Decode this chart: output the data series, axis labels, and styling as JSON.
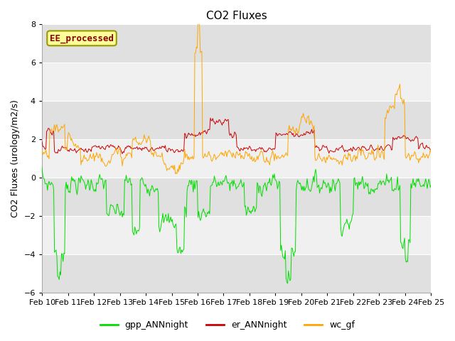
{
  "title": "CO2 Fluxes",
  "ylabel": "CO2 Fluxes (urology/m2/s)",
  "ylim": [
    -6,
    8
  ],
  "yticks": [
    -6,
    -4,
    -2,
    0,
    2,
    4,
    6,
    8
  ],
  "date_labels": [
    "Feb 10",
    "Feb 11",
    "Feb 12",
    "Feb 13",
    "Feb 14",
    "Feb 15",
    "Feb 16",
    "Feb 17",
    "Feb 18",
    "Feb 19",
    "Feb 20",
    "Feb 21",
    "Feb 22",
    "Feb 23",
    "Feb 24",
    "Feb 25"
  ],
  "annotation_text": "EE_processed",
  "annotation_color": "#8B0000",
  "annotation_bg": "#FFFF99",
  "annotation_border": "#999900",
  "color_gpp": "#00DD00",
  "color_er": "#CC0000",
  "color_wc": "#FFA500",
  "legend_labels": [
    "gpp_ANNnight",
    "er_ANNnight",
    "wc_gf"
  ],
  "bg_light": "#F5F5F5",
  "bg_dark": "#E8E8E8",
  "title_fontsize": 11,
  "label_fontsize": 9,
  "tick_fontsize": 8,
  "n_points": 500,
  "seed": 7
}
